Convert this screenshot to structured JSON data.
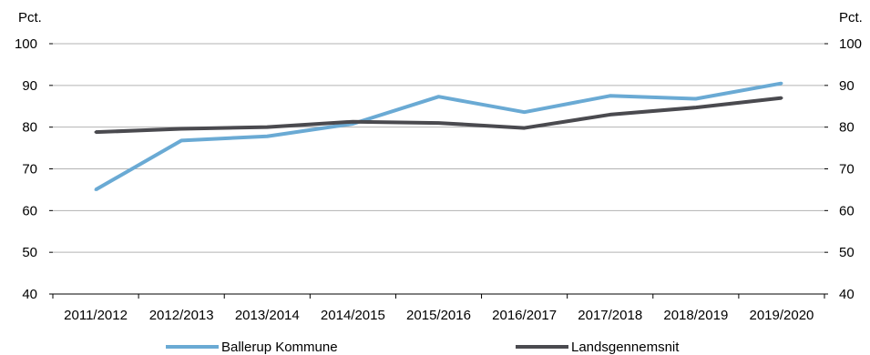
{
  "chart_data": {
    "type": "line",
    "categories": [
      "2011/2012",
      "2012/2013",
      "2013/2014",
      "2014/2015",
      "2015/2016",
      "2016/2017",
      "2017/2018",
      "2018/2019",
      "2019/2020"
    ],
    "series": [
      {
        "name": "Ballerup Kommune",
        "color": "#6aaad4",
        "values": [
          65,
          76.8,
          77.8,
          80.8,
          87.3,
          83.6,
          87.5,
          86.8,
          90.5
        ]
      },
      {
        "name": "Landsgennemsnit",
        "color": "#4a4a4f",
        "values": [
          78.8,
          79.6,
          80.0,
          81.3,
          81.0,
          79.8,
          83.0,
          84.7,
          87.0
        ]
      }
    ],
    "ylabel_left": "Pct.",
    "ylabel_right": "Pct.",
    "ylim": [
      40,
      100
    ],
    "yticks": [
      40,
      50,
      60,
      70,
      80,
      90,
      100
    ],
    "grid": true,
    "legend_position": "bottom"
  }
}
